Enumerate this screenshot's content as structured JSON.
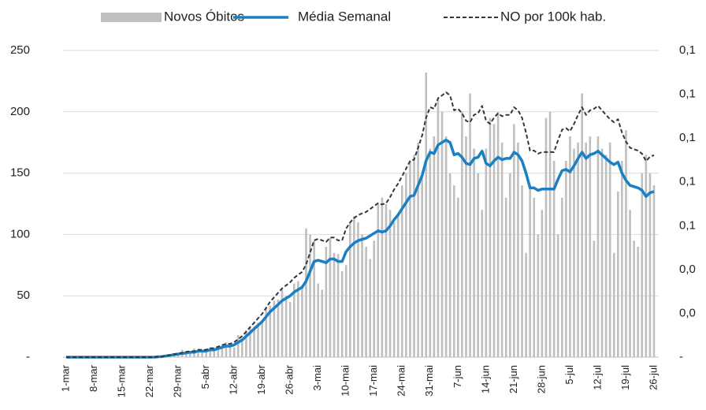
{
  "chart_data": {
    "type": "bar",
    "categories": [
      "1-mar",
      null,
      null,
      null,
      null,
      null,
      null,
      "8-mar",
      null,
      null,
      null,
      null,
      null,
      null,
      "15-mar",
      null,
      null,
      null,
      null,
      null,
      null,
      "22-mar",
      null,
      null,
      null,
      null,
      null,
      null,
      "29-mar",
      null,
      null,
      null,
      null,
      null,
      null,
      "5-abr",
      null,
      null,
      null,
      null,
      null,
      null,
      "12-abr",
      null,
      null,
      null,
      null,
      null,
      null,
      "19-abr",
      null,
      null,
      null,
      null,
      null,
      null,
      "26-abr",
      null,
      null,
      null,
      null,
      null,
      null,
      "3-mai",
      null,
      null,
      null,
      null,
      null,
      null,
      "10-mai",
      null,
      null,
      null,
      null,
      null,
      null,
      "17-mai",
      null,
      null,
      null,
      null,
      null,
      null,
      "24-mai",
      null,
      null,
      null,
      null,
      null,
      null,
      "31-mai",
      null,
      null,
      null,
      null,
      null,
      null,
      "7-jun",
      null,
      null,
      null,
      null,
      null,
      null,
      "14-jun",
      null,
      null,
      null,
      null,
      null,
      null,
      "21-jun",
      null,
      null,
      null,
      null,
      null,
      null,
      "28-jun",
      null,
      null,
      null,
      null,
      null,
      null,
      "5-jul",
      null,
      null,
      null,
      null,
      null,
      null,
      "12-jul",
      null,
      null,
      null,
      null,
      null,
      null,
      "19-jul",
      null,
      null,
      null,
      null,
      null,
      null,
      "26-jul"
    ],
    "series": [
      {
        "name": "Novos Óbitos",
        "type": "bar",
        "color": "#bfbfbf",
        "values": [
          0,
          0,
          0,
          0,
          0,
          0,
          0,
          0,
          0,
          0,
          0,
          0,
          0,
          0,
          0,
          0,
          0,
          0,
          0,
          0,
          0,
          0,
          0,
          1,
          1,
          2,
          2,
          3,
          3,
          6,
          5,
          4,
          7,
          6,
          5,
          6,
          8,
          7,
          6,
          10,
          12,
          9,
          8,
          18,
          15,
          22,
          24,
          25,
          28,
          30,
          40,
          42,
          46,
          47,
          55,
          50,
          45,
          60,
          62,
          58,
          105,
          100,
          95,
          60,
          55,
          90,
          97,
          85,
          84,
          70,
          75,
          110,
          115,
          110,
          100,
          90,
          80,
          95,
          125,
          130,
          125,
          120,
          110,
          115,
          140,
          150,
          160,
          165,
          175,
          150,
          232,
          170,
          180,
          210,
          200,
          180,
          150,
          140,
          130,
          200,
          180,
          215,
          170,
          150,
          120,
          170,
          195,
          190,
          200,
          175,
          130,
          150,
          190,
          175,
          140,
          85,
          140,
          130,
          100,
          120,
          195,
          200,
          160,
          100,
          130,
          160,
          180,
          170,
          175,
          215,
          175,
          180,
          95,
          180,
          170,
          165,
          175,
          85,
          135,
          160,
          185,
          120,
          95,
          90,
          150,
          165,
          150,
          140
        ]
      },
      {
        "name": "Média Semanal",
        "type": "line",
        "color": "#1b7fc4",
        "values": [
          0,
          0,
          0,
          0,
          0,
          0,
          0,
          0,
          0,
          0,
          0,
          0,
          0,
          0,
          0,
          0,
          0,
          0,
          0,
          0,
          0,
          0,
          0,
          0.3,
          0.5,
          1,
          1.5,
          2,
          2.5,
          3,
          3.5,
          4,
          4,
          5,
          5,
          5,
          6,
          6,
          7,
          8,
          9,
          9,
          10,
          12,
          14,
          17,
          20,
          23,
          26,
          29,
          33,
          37,
          40,
          43,
          46,
          48,
          50,
          53,
          55,
          57,
          62,
          70,
          78,
          79,
          78,
          77,
          80,
          80,
          78,
          78,
          86,
          90,
          93,
          95,
          96,
          97,
          99,
          101,
          103,
          102,
          103,
          107,
          112,
          116,
          121,
          126,
          131,
          132,
          140,
          148,
          160,
          167,
          166,
          173,
          175,
          177,
          175,
          165,
          166,
          163,
          158,
          157,
          162,
          163,
          168,
          158,
          156,
          160,
          163,
          161,
          162,
          162,
          167,
          165,
          160,
          150,
          138,
          138,
          136,
          137,
          137,
          137,
          137,
          145,
          152,
          153,
          151,
          156,
          162,
          167,
          162,
          165,
          166,
          168,
          165,
          162,
          159,
          157,
          159,
          150,
          144,
          140,
          139,
          138,
          136,
          131,
          134,
          135
        ]
      },
      {
        "name": "NO por 100k hab.",
        "type": "line",
        "axis": "y2",
        "dashed": true,
        "color": "#2e3742",
        "values": [
          0,
          0,
          0,
          0,
          0,
          0,
          0,
          0,
          0,
          0,
          0,
          0,
          0,
          0,
          0,
          0,
          0,
          0,
          0,
          0,
          0,
          0,
          0,
          0.0002,
          0.0003,
          0.0007,
          0.001,
          0.0014,
          0.0017,
          0.002,
          0.0024,
          0.0027,
          0.0027,
          0.0034,
          0.0034,
          0.0034,
          0.0041,
          0.0041,
          0.0048,
          0.0055,
          0.0061,
          0.0061,
          0.0068,
          0.0082,
          0.0096,
          0.0116,
          0.0137,
          0.0157,
          0.0178,
          0.0198,
          0.0225,
          0.0253,
          0.0273,
          0.0294,
          0.0314,
          0.0328,
          0.0342,
          0.0362,
          0.0376,
          0.0389,
          0.0423,
          0.0478,
          0.0533,
          0.054,
          0.0533,
          0.0526,
          0.0546,
          0.0546,
          0.0533,
          0.0533,
          0.0587,
          0.0615,
          0.0635,
          0.0649,
          0.0656,
          0.0663,
          0.0676,
          0.069,
          0.0703,
          0.0697,
          0.0703,
          0.0731,
          0.0765,
          0.0792,
          0.0826,
          0.0861,
          0.0895,
          0.0902,
          0.0956,
          0.1011,
          0.1093,
          0.1141,
          0.1134,
          0.1182,
          0.1195,
          0.1209,
          0.1195,
          0.1127,
          0.1134,
          0.1113,
          0.1079,
          0.1072,
          0.1106,
          0.1113,
          0.1147,
          0.1079,
          0.1065,
          0.1093,
          0.1113,
          0.11,
          0.1106,
          0.1106,
          0.1141,
          0.1127,
          0.1093,
          0.1025,
          0.0943,
          0.0943,
          0.0929,
          0.0936,
          0.0936,
          0.0936,
          0.0936,
          0.099,
          0.1038,
          0.1045,
          0.1031,
          0.1065,
          0.1106,
          0.1141,
          0.1106,
          0.1127,
          0.1134,
          0.1147,
          0.1127,
          0.1106,
          0.1086,
          0.1072,
          0.1086,
          0.1025,
          0.0984,
          0.0956,
          0.0949,
          0.0943,
          0.0929,
          0.0895,
          0.0915,
          0.0922
        ]
      }
    ],
    "ylim": [
      0,
      250
    ],
    "yticks": [
      {
        "value": 0,
        "label": "-"
      },
      50,
      100,
      150,
      200,
      250
    ],
    "y2lim": [
      0,
      0.14
    ],
    "y2ticks": [
      {
        "value": 0,
        "label": "-"
      },
      {
        "value": 0.02,
        "label": "0,0"
      },
      {
        "value": 0.04,
        "label": "0,0"
      },
      {
        "value": 0.06,
        "label": "0,1"
      },
      {
        "value": 0.08,
        "label": "0,1"
      },
      {
        "value": 0.1,
        "label": "0,1"
      },
      {
        "value": 0.12,
        "label": "0,1"
      },
      {
        "value": 0.14,
        "label": "0,1"
      }
    ],
    "grid": true,
    "legend": "top"
  }
}
